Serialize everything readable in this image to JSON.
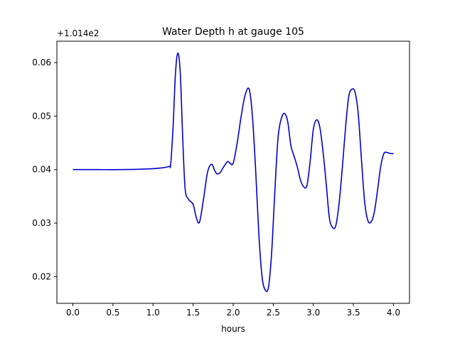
{
  "chart_data": {
    "type": "line",
    "title": "Water Depth h at gauge 105",
    "xlabel": "hours",
    "ylabel": "",
    "offset_label": "+1.014e2",
    "xlim": [
      -0.2,
      4.2
    ],
    "ylim": [
      0.015,
      0.064
    ],
    "x_ticks": [
      0.0,
      0.5,
      1.0,
      1.5,
      2.0,
      2.5,
      3.0,
      3.5,
      4.0
    ],
    "x_tick_labels": [
      "0.0",
      "0.5",
      "1.0",
      "1.5",
      "2.0",
      "2.5",
      "3.0",
      "3.5",
      "4.0"
    ],
    "y_ticks": [
      0.02,
      0.03,
      0.04,
      0.05,
      0.06
    ],
    "y_tick_labels": [
      "0.02",
      "0.03",
      "0.04",
      "0.05",
      "0.06"
    ],
    "grid": false,
    "line_color": "#0000cc",
    "series": [
      {
        "x": [
          0.0,
          0.3,
          0.6,
          0.9,
          1.1,
          1.2,
          1.22,
          1.25,
          1.28,
          1.31,
          1.34,
          1.37,
          1.4,
          1.44,
          1.5,
          1.54,
          1.58,
          1.63,
          1.68,
          1.73,
          1.77,
          1.8,
          1.84,
          1.88,
          1.93,
          1.96,
          2.0,
          2.05,
          2.1,
          2.15,
          2.2,
          2.24,
          2.28,
          2.32,
          2.36,
          2.4,
          2.44,
          2.48,
          2.52,
          2.56,
          2.6,
          2.64,
          2.68,
          2.72,
          2.76,
          2.8,
          2.84,
          2.88,
          2.92,
          2.96,
          3.0,
          3.04,
          3.08,
          3.12,
          3.16,
          3.2,
          3.24,
          3.28,
          3.32,
          3.36,
          3.4,
          3.44,
          3.48,
          3.52,
          3.56,
          3.6,
          3.64,
          3.68,
          3.72,
          3.76,
          3.8,
          3.84,
          3.88,
          3.92,
          3.96,
          4.0
        ],
        "y": [
          0.04,
          0.04,
          0.04,
          0.0401,
          0.0403,
          0.0406,
          0.041,
          0.048,
          0.058,
          0.0618,
          0.058,
          0.046,
          0.0365,
          0.0345,
          0.0335,
          0.031,
          0.0302,
          0.0345,
          0.0395,
          0.041,
          0.0398,
          0.0392,
          0.0395,
          0.0405,
          0.0415,
          0.0412,
          0.0412,
          0.045,
          0.05,
          0.054,
          0.055,
          0.05,
          0.04,
          0.028,
          0.02,
          0.0175,
          0.018,
          0.0245,
          0.036,
          0.046,
          0.0495,
          0.0505,
          0.049,
          0.0445,
          0.0425,
          0.0405,
          0.038,
          0.0368,
          0.037,
          0.0415,
          0.0475,
          0.0493,
          0.048,
          0.0435,
          0.0375,
          0.031,
          0.0292,
          0.0295,
          0.0335,
          0.04,
          0.0475,
          0.0535,
          0.055,
          0.0545,
          0.0505,
          0.042,
          0.034,
          0.0305,
          0.0302,
          0.032,
          0.036,
          0.0405,
          0.043,
          0.0432,
          0.043,
          0.043
        ]
      }
    ]
  }
}
